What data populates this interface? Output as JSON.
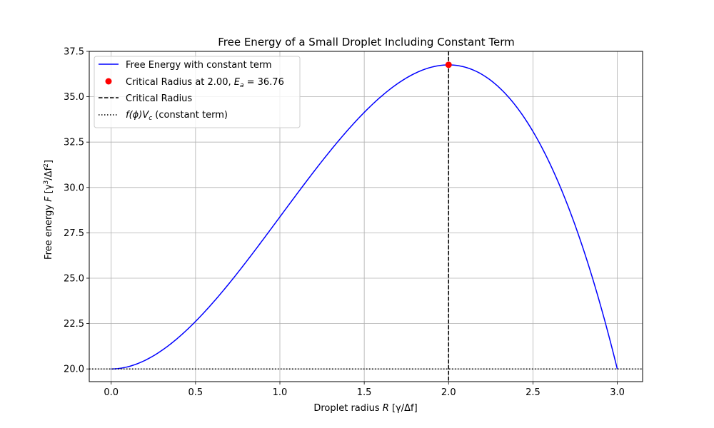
{
  "chart_data": {
    "type": "line",
    "title": "Free Energy of a Small Droplet Including Constant Term",
    "xlabel": {
      "main": "Droplet radius ",
      "var": "R",
      "unit": " [γ/Δf]"
    },
    "ylabel": {
      "main": "Free energy ",
      "var": "F",
      "unit_pre": " [γ",
      "unit_sup1": "3",
      "unit_mid": "/Δf",
      "unit_sup2": "2",
      "unit_post": "]"
    },
    "xlim": [
      -0.13,
      3.15
    ],
    "ylim": [
      19.3,
      37.5
    ],
    "xticks": [
      0.0,
      0.5,
      1.0,
      1.5,
      2.0,
      2.5,
      3.0
    ],
    "xtick_labels": [
      "0.0",
      "0.5",
      "1.0",
      "1.5",
      "2.0",
      "2.5",
      "3.0"
    ],
    "yticks": [
      20.0,
      22.5,
      25.0,
      27.5,
      30.0,
      32.5,
      35.0,
      37.5
    ],
    "ytick_labels": [
      "20.0",
      "22.5",
      "25.0",
      "27.5",
      "30.0",
      "32.5",
      "35.0",
      "37.5"
    ],
    "grid": true,
    "legend_position": "top-left",
    "series": [
      {
        "name": "Free Energy with constant term",
        "color": "#0000ff",
        "function": "20 + 12.566*R^2 - 4.1888*R^3",
        "x_range": [
          0.0,
          3.0
        ]
      }
    ],
    "critical_point": {
      "x": 2.0,
      "y": 36.76,
      "color": "#ff0000"
    },
    "critical_line_x": 2.0,
    "constant_line_y": 20.0,
    "legend": {
      "line_label": "Free Energy with constant term",
      "point_label_pre": "Critical Radius at 2.00, ",
      "point_label_var": "E",
      "point_label_sub": "a",
      "point_label_post": " = 36.76",
      "dashed_label": "Critical Radius",
      "dotted_label_f": "f",
      "dotted_label_phi": "(ϕ)",
      "dotted_label_v": "V",
      "dotted_label_sub": "c",
      "dotted_label_post": " (constant term)"
    }
  }
}
